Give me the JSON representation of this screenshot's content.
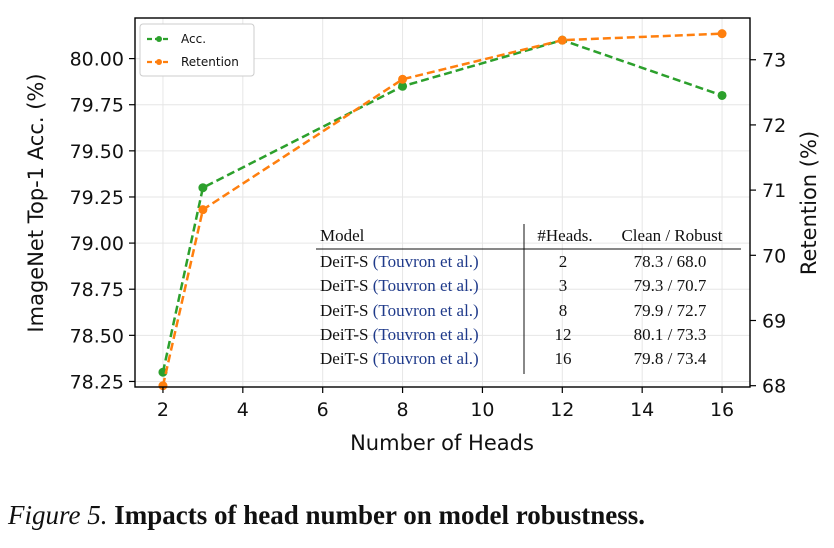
{
  "chart_data": {
    "type": "line",
    "xlabel": "Number of Heads",
    "ylabel": "ImageNet Top-1 Acc. (%)",
    "ylabel_right": "Retention (%)",
    "x": [
      2,
      3,
      8,
      12,
      16
    ],
    "xlim": [
      1.3,
      16.7
    ],
    "ylim": [
      78.22,
      80.22
    ],
    "ylim_right": [
      67.98,
      73.64
    ],
    "x_ticks": [
      2,
      4,
      6,
      8,
      10,
      12,
      14,
      16
    ],
    "y_ticks": [
      78.25,
      78.5,
      78.75,
      79.0,
      79.25,
      79.5,
      79.75,
      80.0
    ],
    "y_tick_labels": [
      "78.25",
      "78.50",
      "78.75",
      "79.00",
      "79.25",
      "79.50",
      "79.75",
      "80.00"
    ],
    "y_right_ticks": [
      68,
      69,
      70,
      71,
      72,
      73
    ],
    "grid": true,
    "legend_position": "top-left",
    "series": [
      {
        "name": "Acc.",
        "axis": "left",
        "color": "#2ca02c",
        "style": "dashed",
        "values": [
          78.3,
          79.3,
          79.85,
          80.1,
          79.8
        ]
      },
      {
        "name": "Retention",
        "axis": "right",
        "color": "#ff7f0e",
        "style": "dashed",
        "values": [
          68.0,
          70.7,
          72.7,
          73.3,
          73.4
        ]
      }
    ],
    "table": {
      "headers": [
        "Model",
        "#Heads.",
        "Clean / Robust"
      ],
      "rows": [
        {
          "model": "DeiT-S",
          "cite": "(Touvron et al.)",
          "heads": "2",
          "result": "78.3 / 68.0"
        },
        {
          "model": "DeiT-S",
          "cite": "(Touvron et al.)",
          "heads": "3",
          "result": "79.3 / 70.7"
        },
        {
          "model": "DeiT-S",
          "cite": "(Touvron et al.)",
          "heads": "8",
          "result": "79.9 / 72.7"
        },
        {
          "model": "DeiT-S",
          "cite": "(Touvron et al.)",
          "heads": "12",
          "result": "80.1 / 73.3"
        },
        {
          "model": "DeiT-S",
          "cite": "(Touvron et al.)",
          "heads": "16",
          "result": "79.8 / 73.4"
        }
      ]
    }
  },
  "caption": {
    "figure": "Figure 5.",
    "title": "Impacts of head number on model robustness."
  }
}
